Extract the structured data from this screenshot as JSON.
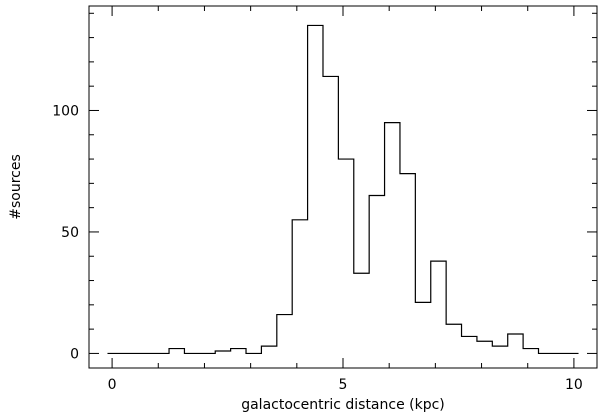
{
  "chart_data": {
    "type": "bar",
    "style": "step-histogram",
    "xlabel": "galactocentric distance (kpc)",
    "ylabel": "#sources",
    "xlim": [
      -0.5,
      10.5
    ],
    "ylim": [
      -6,
      143
    ],
    "x_ticks": [
      0,
      5,
      10
    ],
    "x_tick_labels": [
      "0",
      "5",
      "10"
    ],
    "y_ticks": [
      0,
      50,
      100
    ],
    "y_tick_labels": [
      "0",
      "50",
      "100"
    ],
    "bin_width": 0.3333,
    "bin_edges": [
      -0.1,
      0.2333,
      0.5667,
      0.9,
      1.2333,
      1.5667,
      1.9,
      2.2333,
      2.5667,
      2.9,
      3.2333,
      3.5667,
      3.9,
      4.2333,
      4.5667,
      4.9,
      5.2333,
      5.5667,
      5.9,
      6.2333,
      6.5667,
      6.9,
      7.2333,
      7.5667,
      7.9,
      8.2333,
      8.5667,
      8.9,
      9.2333,
      9.5667,
      9.9,
      10.1
    ],
    "values": [
      0,
      0,
      0,
      0,
      2,
      0,
      0,
      1,
      2,
      0,
      3,
      16,
      55,
      135,
      114,
      80,
      33,
      65,
      95,
      74,
      21,
      38,
      12,
      7,
      5,
      3,
      8,
      2,
      0,
      0,
      0
    ],
    "grid": false,
    "legend": "none"
  }
}
